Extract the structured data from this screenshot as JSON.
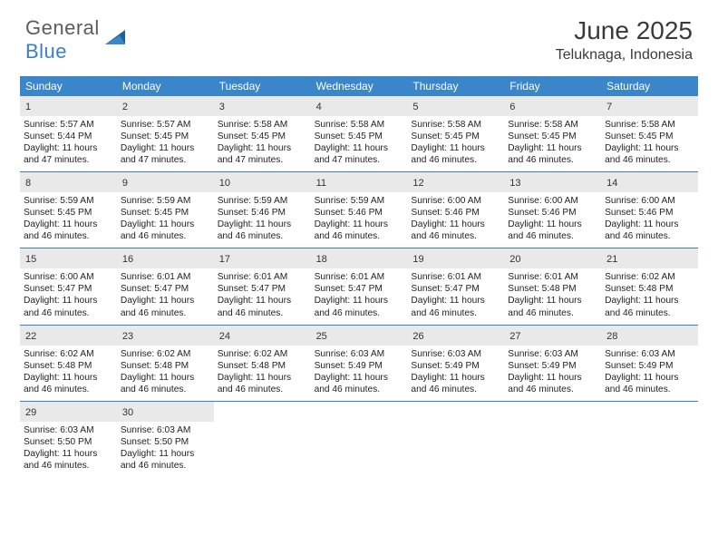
{
  "brand": {
    "part1": "General",
    "part2": "Blue"
  },
  "title": "June 2025",
  "location": "Teluknaga, Indonesia",
  "colors": {
    "headerBar": "#3a86c8",
    "accent": "#3a7fc4",
    "dayNumBg": "#e9e9e9",
    "text": "#222222",
    "logoGray": "#5c5c5c"
  },
  "daysOfWeek": [
    "Sunday",
    "Monday",
    "Tuesday",
    "Wednesday",
    "Thursday",
    "Friday",
    "Saturday"
  ],
  "weeks": [
    [
      {
        "n": "1",
        "sunrise": "Sunrise: 5:57 AM",
        "sunset": "Sunset: 5:44 PM",
        "d1": "Daylight: 11 hours",
        "d2": "and 47 minutes."
      },
      {
        "n": "2",
        "sunrise": "Sunrise: 5:57 AM",
        "sunset": "Sunset: 5:45 PM",
        "d1": "Daylight: 11 hours",
        "d2": "and 47 minutes."
      },
      {
        "n": "3",
        "sunrise": "Sunrise: 5:58 AM",
        "sunset": "Sunset: 5:45 PM",
        "d1": "Daylight: 11 hours",
        "d2": "and 47 minutes."
      },
      {
        "n": "4",
        "sunrise": "Sunrise: 5:58 AM",
        "sunset": "Sunset: 5:45 PM",
        "d1": "Daylight: 11 hours",
        "d2": "and 47 minutes."
      },
      {
        "n": "5",
        "sunrise": "Sunrise: 5:58 AM",
        "sunset": "Sunset: 5:45 PM",
        "d1": "Daylight: 11 hours",
        "d2": "and 46 minutes."
      },
      {
        "n": "6",
        "sunrise": "Sunrise: 5:58 AM",
        "sunset": "Sunset: 5:45 PM",
        "d1": "Daylight: 11 hours",
        "d2": "and 46 minutes."
      },
      {
        "n": "7",
        "sunrise": "Sunrise: 5:58 AM",
        "sunset": "Sunset: 5:45 PM",
        "d1": "Daylight: 11 hours",
        "d2": "and 46 minutes."
      }
    ],
    [
      {
        "n": "8",
        "sunrise": "Sunrise: 5:59 AM",
        "sunset": "Sunset: 5:45 PM",
        "d1": "Daylight: 11 hours",
        "d2": "and 46 minutes."
      },
      {
        "n": "9",
        "sunrise": "Sunrise: 5:59 AM",
        "sunset": "Sunset: 5:45 PM",
        "d1": "Daylight: 11 hours",
        "d2": "and 46 minutes."
      },
      {
        "n": "10",
        "sunrise": "Sunrise: 5:59 AM",
        "sunset": "Sunset: 5:46 PM",
        "d1": "Daylight: 11 hours",
        "d2": "and 46 minutes."
      },
      {
        "n": "11",
        "sunrise": "Sunrise: 5:59 AM",
        "sunset": "Sunset: 5:46 PM",
        "d1": "Daylight: 11 hours",
        "d2": "and 46 minutes."
      },
      {
        "n": "12",
        "sunrise": "Sunrise: 6:00 AM",
        "sunset": "Sunset: 5:46 PM",
        "d1": "Daylight: 11 hours",
        "d2": "and 46 minutes."
      },
      {
        "n": "13",
        "sunrise": "Sunrise: 6:00 AM",
        "sunset": "Sunset: 5:46 PM",
        "d1": "Daylight: 11 hours",
        "d2": "and 46 minutes."
      },
      {
        "n": "14",
        "sunrise": "Sunrise: 6:00 AM",
        "sunset": "Sunset: 5:46 PM",
        "d1": "Daylight: 11 hours",
        "d2": "and 46 minutes."
      }
    ],
    [
      {
        "n": "15",
        "sunrise": "Sunrise: 6:00 AM",
        "sunset": "Sunset: 5:47 PM",
        "d1": "Daylight: 11 hours",
        "d2": "and 46 minutes."
      },
      {
        "n": "16",
        "sunrise": "Sunrise: 6:01 AM",
        "sunset": "Sunset: 5:47 PM",
        "d1": "Daylight: 11 hours",
        "d2": "and 46 minutes."
      },
      {
        "n": "17",
        "sunrise": "Sunrise: 6:01 AM",
        "sunset": "Sunset: 5:47 PM",
        "d1": "Daylight: 11 hours",
        "d2": "and 46 minutes."
      },
      {
        "n": "18",
        "sunrise": "Sunrise: 6:01 AM",
        "sunset": "Sunset: 5:47 PM",
        "d1": "Daylight: 11 hours",
        "d2": "and 46 minutes."
      },
      {
        "n": "19",
        "sunrise": "Sunrise: 6:01 AM",
        "sunset": "Sunset: 5:47 PM",
        "d1": "Daylight: 11 hours",
        "d2": "and 46 minutes."
      },
      {
        "n": "20",
        "sunrise": "Sunrise: 6:01 AM",
        "sunset": "Sunset: 5:48 PM",
        "d1": "Daylight: 11 hours",
        "d2": "and 46 minutes."
      },
      {
        "n": "21",
        "sunrise": "Sunrise: 6:02 AM",
        "sunset": "Sunset: 5:48 PM",
        "d1": "Daylight: 11 hours",
        "d2": "and 46 minutes."
      }
    ],
    [
      {
        "n": "22",
        "sunrise": "Sunrise: 6:02 AM",
        "sunset": "Sunset: 5:48 PM",
        "d1": "Daylight: 11 hours",
        "d2": "and 46 minutes."
      },
      {
        "n": "23",
        "sunrise": "Sunrise: 6:02 AM",
        "sunset": "Sunset: 5:48 PM",
        "d1": "Daylight: 11 hours",
        "d2": "and 46 minutes."
      },
      {
        "n": "24",
        "sunrise": "Sunrise: 6:02 AM",
        "sunset": "Sunset: 5:48 PM",
        "d1": "Daylight: 11 hours",
        "d2": "and 46 minutes."
      },
      {
        "n": "25",
        "sunrise": "Sunrise: 6:03 AM",
        "sunset": "Sunset: 5:49 PM",
        "d1": "Daylight: 11 hours",
        "d2": "and 46 minutes."
      },
      {
        "n": "26",
        "sunrise": "Sunrise: 6:03 AM",
        "sunset": "Sunset: 5:49 PM",
        "d1": "Daylight: 11 hours",
        "d2": "and 46 minutes."
      },
      {
        "n": "27",
        "sunrise": "Sunrise: 6:03 AM",
        "sunset": "Sunset: 5:49 PM",
        "d1": "Daylight: 11 hours",
        "d2": "and 46 minutes."
      },
      {
        "n": "28",
        "sunrise": "Sunrise: 6:03 AM",
        "sunset": "Sunset: 5:49 PM",
        "d1": "Daylight: 11 hours",
        "d2": "and 46 minutes."
      }
    ],
    [
      {
        "n": "29",
        "sunrise": "Sunrise: 6:03 AM",
        "sunset": "Sunset: 5:50 PM",
        "d1": "Daylight: 11 hours",
        "d2": "and 46 minutes."
      },
      {
        "n": "30",
        "sunrise": "Sunrise: 6:03 AM",
        "sunset": "Sunset: 5:50 PM",
        "d1": "Daylight: 11 hours",
        "d2": "and 46 minutes."
      },
      null,
      null,
      null,
      null,
      null
    ]
  ]
}
